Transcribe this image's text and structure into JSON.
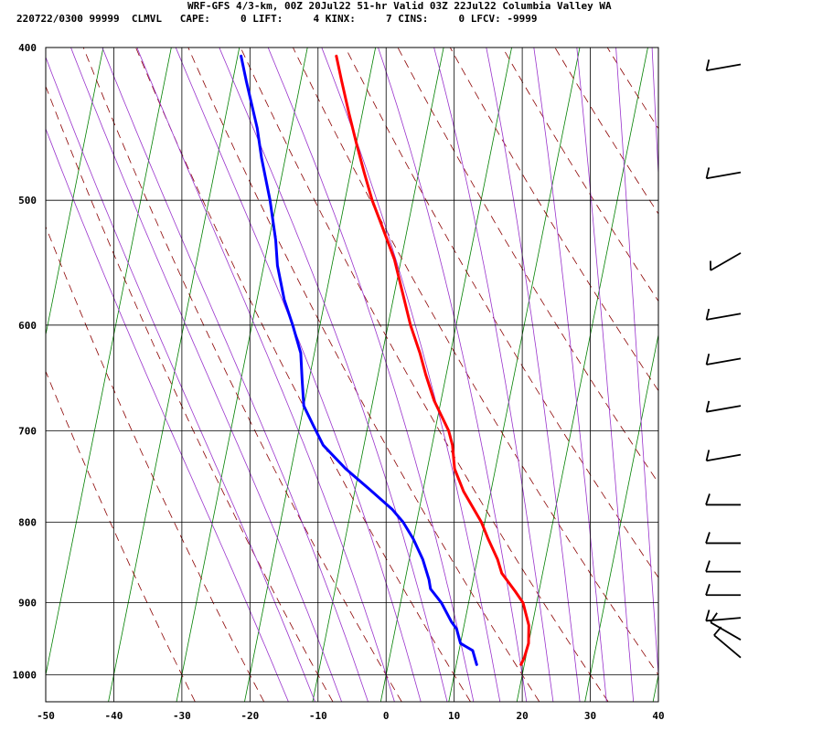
{
  "header": {
    "title": "WRF-GFS 4/3-km, 00Z 20Jul22 51-hr Valid 03Z 22Jul22 Columbia Valley WA",
    "subtitle": "220722/0300 99999  CLMVL   CAPE:     0 LIFT:     4 KINX:     7 CINS:     0 LFCV: -9999"
  },
  "colors": {
    "temperature": "#ff0000",
    "dewpoint": "#0000ff",
    "isotherm": "#008000",
    "dry_adiabat": "#8b0000",
    "moist_adiabat": "#9932cc",
    "grid": "#000000"
  },
  "chart_data": {
    "type": "line",
    "title": "WRF-GFS 4/3-km, 00Z 20Jul22 51-hr Valid 03Z 22Jul22 Columbia Valley WA",
    "xlim": [
      -50,
      40
    ],
    "ylim": [
      1040,
      400
    ],
    "y_scale": "log",
    "grid": true,
    "x_ticks": [
      -50,
      -40,
      -30,
      -20,
      -10,
      0,
      10,
      20,
      30,
      40
    ],
    "y_ticks": [
      400,
      500,
      600,
      700,
      800,
      900,
      1000
    ],
    "series": [
      {
        "key": "temperature",
        "points": [
          [
            -25.5,
            405
          ],
          [
            -24,
            420
          ],
          [
            -22,
            440
          ],
          [
            -20,
            460
          ],
          [
            -18,
            480
          ],
          [
            -16,
            500
          ],
          [
            -13.7,
            520
          ],
          [
            -11,
            545
          ],
          [
            -9,
            570
          ],
          [
            -6.7,
            600
          ],
          [
            -4.5,
            625
          ],
          [
            -3,
            645
          ],
          [
            -1,
            670
          ],
          [
            2,
            700
          ],
          [
            3,
            715
          ],
          [
            4,
            740
          ],
          [
            6,
            765
          ],
          [
            9.5,
            800
          ],
          [
            11,
            820
          ],
          [
            13,
            845
          ],
          [
            14,
            862
          ],
          [
            16.5,
            885
          ],
          [
            18,
            900
          ],
          [
            19.5,
            930
          ],
          [
            20,
            955
          ],
          [
            19.8,
            975
          ],
          [
            19.5,
            985
          ]
        ]
      },
      {
        "key": "dewpoint",
        "points": [
          [
            -39.5,
            405
          ],
          [
            -38,
            420
          ],
          [
            -35,
            450
          ],
          [
            -33.5,
            470
          ],
          [
            -31,
            500
          ],
          [
            -29,
            530
          ],
          [
            -28,
            550
          ],
          [
            -26,
            578
          ],
          [
            -24,
            600
          ],
          [
            -22,
            625
          ],
          [
            -21,
            650
          ],
          [
            -20,
            675
          ],
          [
            -18,
            695
          ],
          [
            -16,
            715
          ],
          [
            -12,
            740
          ],
          [
            -8,
            762
          ],
          [
            -4,
            785
          ],
          [
            -2,
            800
          ],
          [
            0,
            820
          ],
          [
            2,
            845
          ],
          [
            3.5,
            870
          ],
          [
            4,
            882
          ],
          [
            6,
            900
          ],
          [
            8,
            925
          ],
          [
            9,
            935
          ],
          [
            10,
            955
          ],
          [
            12,
            965
          ],
          [
            13,
            985
          ]
        ]
      }
    ],
    "wind_barbs": [
      {
        "p": 410,
        "direction": 260,
        "speed": 10
      },
      {
        "p": 480,
        "direction": 260,
        "speed": 10
      },
      {
        "p": 540,
        "direction": 240,
        "speed": 10
      },
      {
        "p": 590,
        "direction": 260,
        "speed": 10
      },
      {
        "p": 630,
        "direction": 260,
        "speed": 10
      },
      {
        "p": 675,
        "direction": 260,
        "speed": 10
      },
      {
        "p": 725,
        "direction": 260,
        "speed": 10
      },
      {
        "p": 780,
        "direction": 270,
        "speed": 10
      },
      {
        "p": 825,
        "direction": 270,
        "speed": 10
      },
      {
        "p": 860,
        "direction": 270,
        "speed": 10
      },
      {
        "p": 890,
        "direction": 270,
        "speed": 10
      },
      {
        "p": 920,
        "direction": 265,
        "speed": 10
      },
      {
        "p": 950,
        "direction": 300,
        "speed": 10
      },
      {
        "p": 975,
        "direction": 310,
        "speed": 10
      }
    ]
  }
}
